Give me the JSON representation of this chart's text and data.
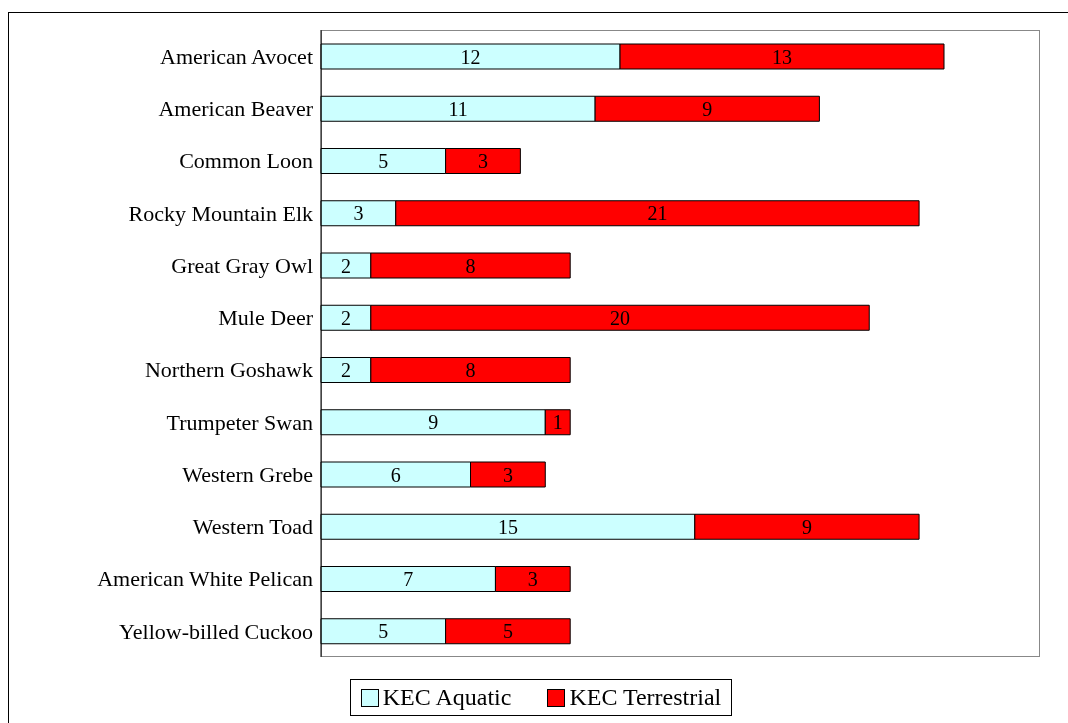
{
  "chart_data": {
    "type": "bar",
    "orientation": "horizontal",
    "stacked": true,
    "data_labels": true,
    "legend": "bottom",
    "grid": false,
    "categories": [
      "American Avocet",
      "American Beaver",
      "Common Loon",
      "Rocky Mountain Elk",
      "Great Gray Owl",
      "Mule Deer",
      "Northern Goshawk",
      "Trumpeter Swan",
      "Western Grebe",
      "Western Toad",
      "American White Pelican",
      "Yellow-billed Cuckoo"
    ],
    "series": [
      {
        "name": "KEC Aquatic",
        "color": "#ccffff",
        "values": [
          12,
          11,
          5,
          3,
          2,
          2,
          2,
          9,
          6,
          15,
          7,
          5
        ]
      },
      {
        "name": "KEC Terrestrial",
        "color": "#ff0000",
        "values": [
          13,
          9,
          3,
          21,
          8,
          20,
          8,
          1,
          3,
          9,
          3,
          5
        ]
      }
    ]
  }
}
